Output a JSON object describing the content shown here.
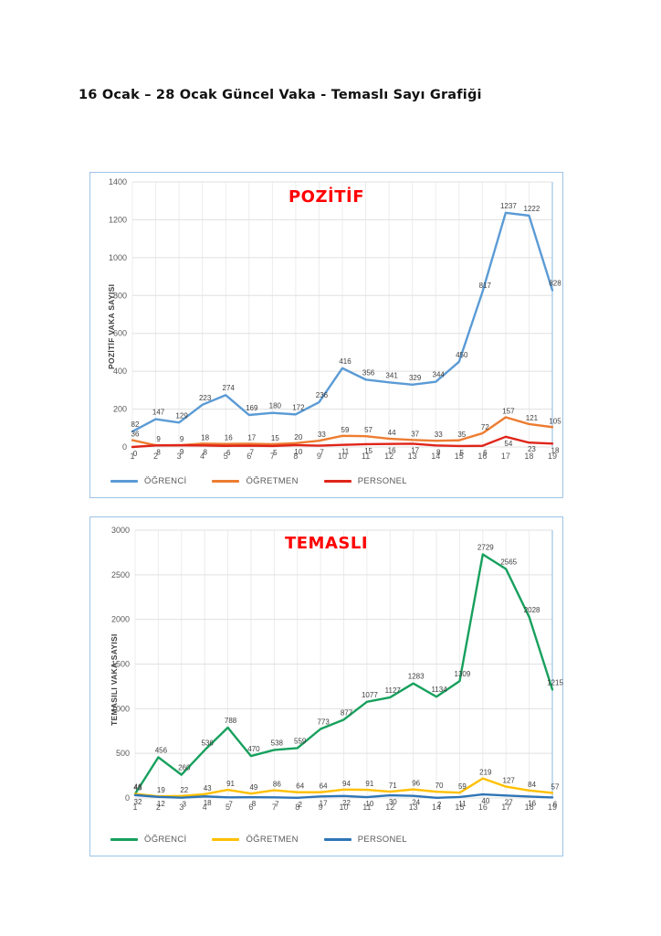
{
  "page": {
    "title": "16 Ocak – 28 Ocak Güncel Vaka - Temaslı Sayı Grafiği"
  },
  "chart_data": [
    {
      "type": "line",
      "title": "POZİTİF",
      "ylabel": "POZİTİF VAKA SAYISI",
      "xlabel": "",
      "categories": [
        1,
        2,
        3,
        4,
        5,
        6,
        7,
        8,
        9,
        10,
        11,
        12,
        13,
        14,
        15,
        16,
        17,
        18,
        19
      ],
      "ylim": [
        0,
        1400
      ],
      "ytick_step": 200,
      "grid": true,
      "legend_position": "bottom-left",
      "label_color": "#404040",
      "border_color": "#9dc3e6",
      "series": [
        {
          "name": "ÖĞRENCİ",
          "color": "#5b9bd5",
          "values": [
            82,
            147,
            129,
            223,
            274,
            169,
            180,
            172,
            236,
            416,
            356,
            341,
            329,
            344,
            450,
            817,
            1237,
            1222,
            828
          ]
        },
        {
          "name": "ÖĞRETMEN",
          "color": "#ed7d31",
          "values": [
            36,
            9,
            9,
            18,
            16,
            17,
            15,
            20,
            33,
            59,
            57,
            44,
            37,
            33,
            35,
            72,
            157,
            121,
            105
          ]
        },
        {
          "name": "PERSONEL",
          "color": "#e02419",
          "values": [
            0,
            8,
            9,
            8,
            6,
            7,
            5,
            10,
            7,
            11,
            15,
            16,
            17,
            8,
            5,
            6,
            54,
            23,
            18
          ]
        }
      ]
    },
    {
      "type": "line",
      "title": "TEMASLI",
      "ylabel": "TEMASILI VAKA SAYISI",
      "xlabel": "",
      "categories": [
        1,
        2,
        3,
        4,
        5,
        6,
        7,
        8,
        9,
        10,
        11,
        12,
        13,
        14,
        15,
        16,
        17,
        18,
        19
      ],
      "ylim": [
        0,
        3000
      ],
      "ytick_step": 500,
      "grid": true,
      "legend_position": "bottom-left",
      "label_color": "#404040",
      "border_color": "#9dc3e6",
      "series": [
        {
          "name": "ÖĞRENCİ",
          "color": "#17a05d",
          "values": [
            46,
            456,
            260,
            536,
            788,
            470,
            538,
            559,
            773,
            877,
            1077,
            1127,
            1283,
            1134,
            1309,
            2729,
            2565,
            2028,
            1215
          ]
        },
        {
          "name": "ÖĞRETMEN",
          "color": "#ffc000",
          "values": [
            46,
            19,
            22,
            43,
            91,
            49,
            86,
            64,
            64,
            94,
            91,
            71,
            96,
            70,
            59,
            219,
            127,
            84,
            57
          ]
        },
        {
          "name": "PERSONEL",
          "color": "#2e75b6",
          "values": [
            32,
            12,
            3,
            18,
            7,
            8,
            7,
            2,
            17,
            22,
            10,
            30,
            24,
            2,
            11,
            40,
            27,
            16,
            6
          ]
        }
      ]
    }
  ]
}
